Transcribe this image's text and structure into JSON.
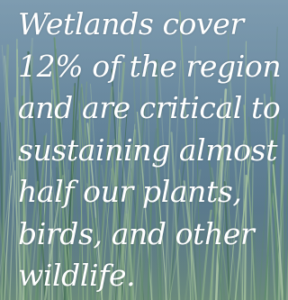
{
  "quote": {
    "lines": [
      "Wetlands cover",
      "12% of the region",
      "and are critical to",
      "sustaining almost",
      "half our plants,",
      "birds, and other",
      "wildlife."
    ]
  },
  "background": {
    "subject": "wetland reeds and grass over water",
    "colors": {
      "sky_water": "#6a89a0",
      "reed_light": "#a9c7a0",
      "reed_dark": "#3f6a52",
      "text": "#ffffff"
    }
  }
}
